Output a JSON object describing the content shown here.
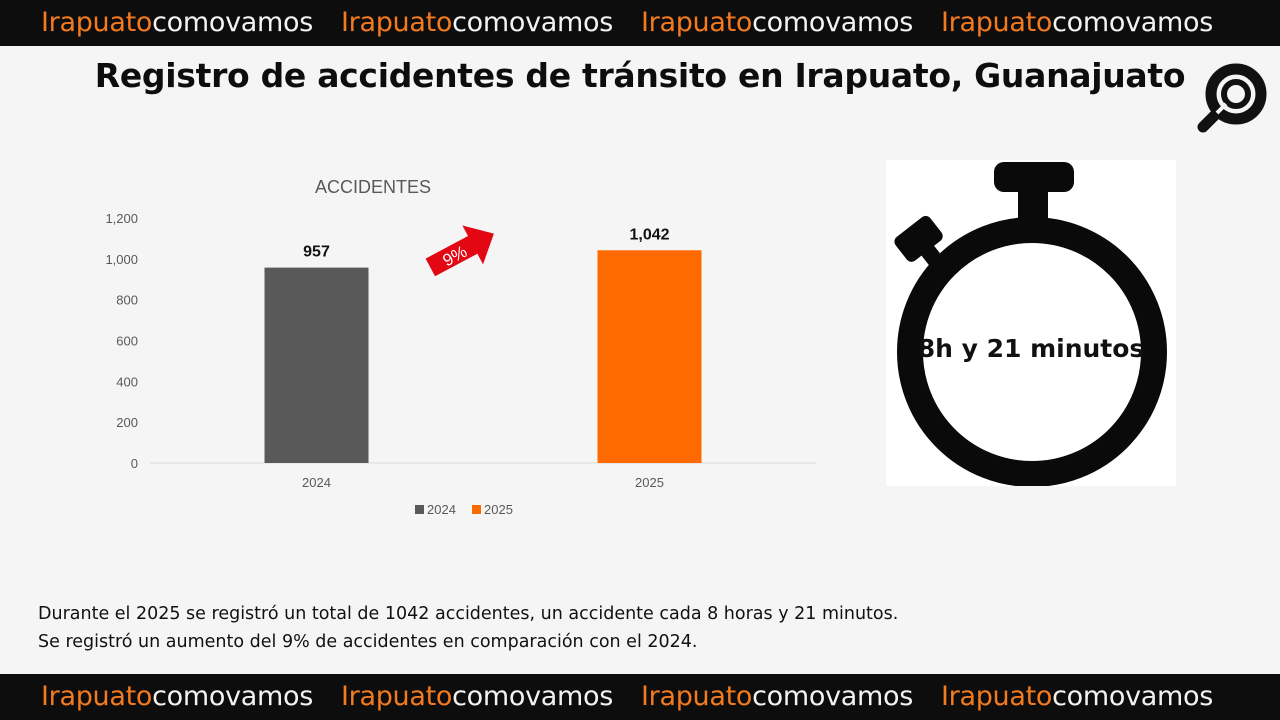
{
  "banner": {
    "word_orange": "Irapuato",
    "word_white": "comovamos"
  },
  "header": {
    "title": "Registro de accidentes de tránsito en Irapuato, Guanajuato"
  },
  "chart_data": {
    "type": "bar",
    "title": "ACCIDENTES",
    "categories": [
      "2024",
      "2025"
    ],
    "values": [
      957,
      1042
    ],
    "value_labels": [
      "957",
      "1,042"
    ],
    "bar_colors": [
      "#595959",
      "#ff6a00"
    ],
    "ylim": [
      0,
      1200
    ],
    "yticks": [
      "0",
      "200",
      "400",
      "600",
      "800",
      "1,000",
      "1,200"
    ],
    "xlabel": "",
    "ylabel": "",
    "grid": false,
    "legend": {
      "position": "bottom",
      "entries": [
        {
          "label": "2024",
          "color": "#595959"
        },
        {
          "label": "2025",
          "color": "#ff6a00"
        }
      ]
    },
    "annotation": {
      "text": "9%",
      "color": "#e30613",
      "shape": "arrow-up-right"
    }
  },
  "stopwatch": {
    "label": "8h y 21 minutos"
  },
  "summary": {
    "line1": "Durante el 2025 se registró un total de 1042 accidentes, un accidente cada 8 horas y 21 minutos.",
    "line2": "Se registró un aumento del 9% de accidentes en comparación con el 2024."
  },
  "icons": {
    "logo": "magnifier-logo-icon",
    "stopwatch": "stopwatch-icon",
    "arrow": "arrow-up-right-icon"
  }
}
